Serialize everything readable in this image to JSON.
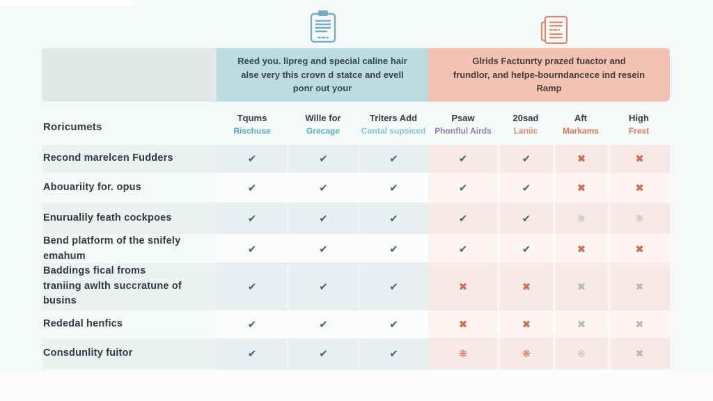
{
  "colors": {
    "check": "#3e6773",
    "cross": "#d2684c",
    "cross_alt": "#e0785a",
    "muted": "#b6babc",
    "muted_alt": "#c2c5c6",
    "group_left_bg": "#b9dbe1",
    "group_right_bg": "#f2c2b3",
    "spacer_bg": "#e3e7e8",
    "icon_left": "#74aec1",
    "icon_right": "#dc8a6f"
  },
  "icons": {
    "left": "clipboard-icon",
    "right": "newspaper-icon"
  },
  "chart_data": {
    "type": "table",
    "row_header": "Roricumets",
    "groups": [
      {
        "side": "left",
        "description": "Reed you. lipreg and special caline hair\nalse very this crovn d statce and evell\nponr out your"
      },
      {
        "side": "right",
        "description": "Glrids Factunrty prazed fuactor and\nfrundlor, and helpe-bourndancece ind resein\nRamp"
      }
    ],
    "columns": [
      {
        "label": "Tqums",
        "sublabel": "Rischuse",
        "sub_color": "#5ba9c4",
        "group": "left"
      },
      {
        "label": "Wille for",
        "sublabel": "Grecage",
        "sub_color": "#56b3bd",
        "group": "left"
      },
      {
        "label": "Triters Add",
        "sublabel": "Contal supsiced",
        "sub_color": "#84c6ce",
        "group": "left"
      },
      {
        "label": "Psaw",
        "sublabel": "Phonflul Airds",
        "sub_color": "#8a7fb8",
        "group": "right"
      },
      {
        "label": "20sad",
        "sublabel": "Laniic",
        "sub_color": "#e29077",
        "group": "right"
      },
      {
        "label": "Aft",
        "sublabel": "Markams",
        "sub_color": "#d77a5f",
        "group": "right"
      },
      {
        "label": "High",
        "sublabel": "Frest",
        "sub_color": "#dd7a5c",
        "group": "right"
      }
    ],
    "rows": [
      {
        "label": "Recond marelcen Fudders",
        "marks": [
          "yes",
          "yes",
          "yes",
          "yes",
          "yes",
          "no",
          "no"
        ]
      },
      {
        "label": "Abouariity for. opus",
        "marks": [
          "yes",
          "yes",
          "yes",
          "yes",
          "yes",
          "no",
          "no"
        ]
      },
      {
        "label": "Enurualily feath cockpoes",
        "marks": [
          "yes",
          "yes",
          "yes",
          "yes",
          "yes",
          "no-muted-alt",
          "no-muted-alt"
        ]
      },
      {
        "label": "Bend platform of the snifely emahum",
        "marks": [
          "yes",
          "yes",
          "yes",
          "yes",
          "yes",
          "no",
          "no"
        ]
      },
      {
        "label": "Baddings fical froms\ntraniing awlth succratune of\nbusins",
        "marks": [
          "yes",
          "yes",
          "yes",
          "no",
          "no",
          "no-muted",
          "no-muted"
        ]
      },
      {
        "label": "Rededal henfics",
        "marks": [
          "yes",
          "yes",
          "yes",
          "no",
          "no",
          "no-muted",
          "no-muted"
        ]
      },
      {
        "label": "Consdunlity fuitor",
        "marks": [
          "yes",
          "yes",
          "yes",
          "no-alt",
          "no-alt",
          "no-muted-alt",
          "no-muted"
        ]
      }
    ]
  }
}
